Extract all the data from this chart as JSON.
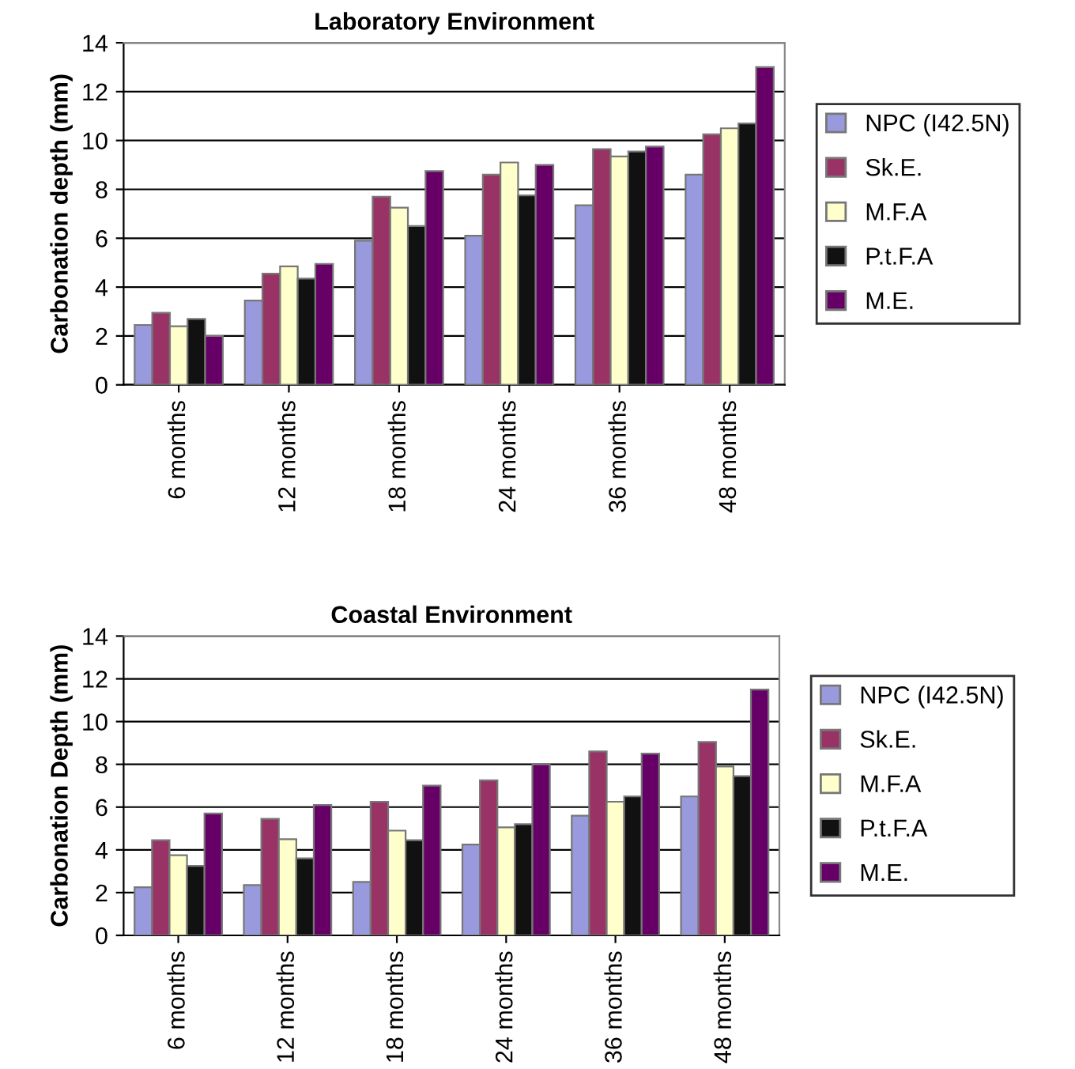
{
  "chart_data": [
    {
      "type": "bar",
      "title": "Laboratory Environment",
      "ylabel": "Carbonation depth (mm)",
      "categories": [
        "6 months",
        "12 months",
        "18 months",
        "24 months",
        "36 months",
        "48 months"
      ],
      "series": [
        {
          "name": "NPC (I42.5N)",
          "color": "#9999dd",
          "values": [
            2.45,
            3.45,
            5.9,
            6.1,
            7.35,
            8.6
          ]
        },
        {
          "name": "Sk.E.",
          "color": "#993366",
          "values": [
            2.95,
            4.55,
            7.7,
            8.6,
            9.65,
            10.25
          ]
        },
        {
          "name": "M.F.A",
          "color": "#ffffcc",
          "values": [
            2.4,
            4.85,
            7.25,
            9.1,
            9.35,
            10.5
          ]
        },
        {
          "name": "P.t.F.A",
          "color": "#111111",
          "values": [
            2.7,
            4.35,
            6.5,
            7.75,
            9.55,
            10.7
          ]
        },
        {
          "name": "M.E.",
          "color": "#660066",
          "values": [
            2.0,
            4.95,
            8.75,
            9.0,
            9.75,
            13.0
          ]
        }
      ],
      "ylim": [
        0,
        14
      ],
      "yticks": [
        0,
        2,
        4,
        6,
        8,
        10,
        12,
        14
      ],
      "grid": "y",
      "legend": "right"
    },
    {
      "type": "bar",
      "title": "Coastal Environment",
      "ylabel": "Carbonation Depth (mm)",
      "categories": [
        "6 months",
        "12 months",
        "18 months",
        "24 months",
        "36 months",
        "48 months"
      ],
      "series": [
        {
          "name": "NPC (I42.5N)",
          "color": "#9999dd",
          "values": [
            2.25,
            2.35,
            2.5,
            4.25,
            5.6,
            6.5
          ]
        },
        {
          "name": "Sk.E.",
          "color": "#993366",
          "values": [
            4.45,
            5.45,
            6.25,
            7.25,
            8.6,
            9.05
          ]
        },
        {
          "name": "M.F.A",
          "color": "#ffffcc",
          "values": [
            3.75,
            4.5,
            4.9,
            5.05,
            6.25,
            7.9
          ]
        },
        {
          "name": "P.t.F.A",
          "color": "#111111",
          "values": [
            3.25,
            3.6,
            4.45,
            5.2,
            6.5,
            7.45
          ]
        },
        {
          "name": "M.E.",
          "color": "#660066",
          "values": [
            5.7,
            6.1,
            7.0,
            8.0,
            8.5,
            11.5
          ]
        }
      ],
      "ylim": [
        0,
        14
      ],
      "yticks": [
        0,
        2,
        4,
        6,
        8,
        10,
        12,
        14
      ],
      "grid": "y",
      "legend": "right"
    }
  ]
}
